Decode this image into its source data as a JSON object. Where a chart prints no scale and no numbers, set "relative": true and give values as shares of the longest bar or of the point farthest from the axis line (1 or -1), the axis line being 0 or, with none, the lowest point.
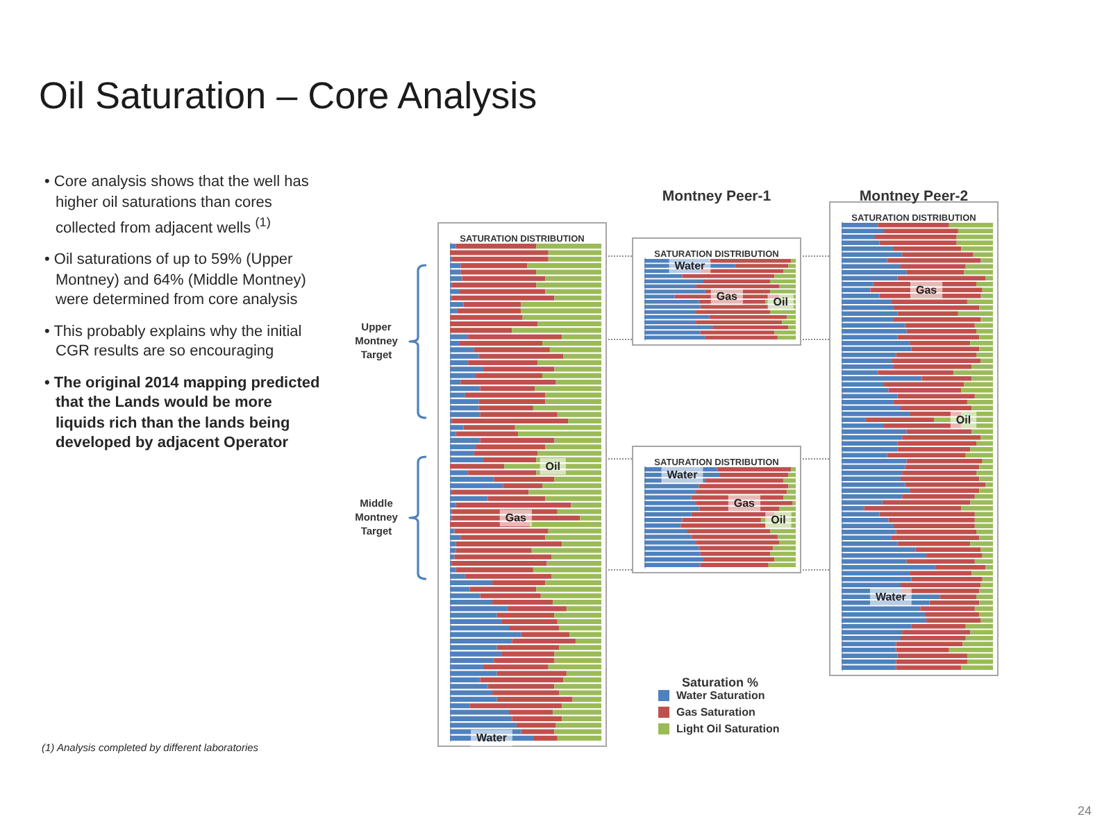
{
  "chart_data": [
    {
      "type": "other",
      "title": "Oil Saturation – Core Analysis",
      "annotations": [
        "• Core analysis shows that the well has higher oil saturations than cores collected from adjacent wells $^{(1)}$",
        "• Oil saturations of up to 59% (Upper Montney) and 64% (Middle Montney) were determined from core analysis",
        "• This probably explains why the initial CGR results are so encouraging",
        "• The original 2014 mapping predicted that the Lands would be more liquids rich than the lands being developed by adjacent Operator",
        "(1) Analysis completed by different laboratories",
        "24"
      ]
    },
    {
      "type": "bar",
      "subtitle": "SATURATION DISTRIBUTION",
      "orientation": "horizontal",
      "stacked": true,
      "relative": true,
      "categories": [
        null,
        null,
        null,
        null,
        null,
        null,
        null,
        null,
        null,
        null,
        null,
        null,
        null,
        null,
        null,
        null,
        null,
        null,
        null,
        null,
        null,
        null,
        null,
        null,
        null,
        null,
        null,
        null,
        null,
        null,
        null,
        null,
        null,
        null,
        null,
        null,
        null,
        null,
        null,
        null,
        null,
        null,
        null,
        null,
        null,
        null,
        null,
        null,
        null,
        null,
        null,
        null,
        null,
        null,
        null,
        null,
        null,
        null,
        null,
        null,
        null,
        null,
        null,
        null,
        null,
        null,
        null,
        null,
        null,
        null,
        null,
        null,
        null,
        null,
        null,
        null,
        null
      ],
      "series": [
        {
          "color": "#4f81bd",
          "values": [
            0.04,
            0,
            0.01,
            0.07,
            0.07,
            0.08,
            0.01,
            0.06,
            0.01,
            0.09,
            0.05,
            0,
            0,
            0,
            0.12,
            0.06,
            0.16,
            0.19,
            0.12,
            0.22,
            0.17,
            0.07,
            0.2,
            0.1,
            0.19,
            0.19,
            0.2,
            0.01,
            0.09,
            0.04,
            0.2,
            0.17,
            0.16,
            0.22,
            0,
            0.12,
            0.29,
            0.35,
            0.01,
            0.25,
            0.04,
            0.01,
            0.01,
            0,
            0.03,
            0.07,
            0.04,
            0.04,
            0.03,
            0.01,
            0.04,
            0.1,
            0.28,
            0.13,
            0.2,
            0.28,
            0.38,
            0.31,
            0.34,
            0.39,
            0.47,
            0.41,
            0.31,
            0.34,
            0.29,
            0.22,
            0.31,
            0.2,
            0.25,
            0.28,
            0.31,
            0.13,
            0.39,
            0.41,
            0.44,
            0.47,
            0.55
          ]
        },
        {
          "color": "#c0504d",
          "values": [
            0.53,
            0.65,
            0.64,
            0.44,
            0.5,
            0.55,
            0.56,
            0.57,
            0.68,
            0.38,
            0.42,
            0.48,
            0.58,
            0.41,
            0.62,
            0.55,
            0.5,
            0.56,
            0.46,
            0.47,
            0.44,
            0.63,
            0.36,
            0.53,
            0.44,
            0.36,
            0.51,
            0.77,
            0.34,
            0.41,
            0.49,
            0.46,
            0.42,
            0.35,
            0.36,
            0.45,
            0.4,
            0.26,
            0.51,
            0.38,
            0.76,
            0.7,
            0.85,
            0.53,
            0.62,
            0.56,
            0.7,
            0.5,
            0.64,
            0.63,
            0.51,
            0.57,
            0.35,
            0.44,
            0.4,
            0.4,
            0.39,
            0.38,
            0.37,
            0.33,
            0.32,
            0.42,
            0.41,
            0.35,
            0.4,
            0.43,
            0.46,
            0.55,
            0.44,
            0.44,
            0.5,
            0.61,
            0.29,
            0.33,
            0.26,
            0.22,
            0.16
          ]
        },
        {
          "color": "#9bbb59",
          "values": [
            0.43,
            0.35,
            0.35,
            0.49,
            0.43,
            0.37,
            0.43,
            0.37,
            0.31,
            0.53,
            0.53,
            0.52,
            0.42,
            0.59,
            0.26,
            0.39,
            0.34,
            0.25,
            0.42,
            0.31,
            0.39,
            0.3,
            0.44,
            0.37,
            0.37,
            0.45,
            0.29,
            0.22,
            0.57,
            0.55,
            0.31,
            0.37,
            0.42,
            0.43,
            0.64,
            0.43,
            0.31,
            0.39,
            0.48,
            0.37,
            0.2,
            0.29,
            0.14,
            0.47,
            0.35,
            0.37,
            0.26,
            0.46,
            0.33,
            0.36,
            0.45,
            0.33,
            0.37,
            0.43,
            0.4,
            0.32,
            0.23,
            0.31,
            0.29,
            0.28,
            0.21,
            0.17,
            0.28,
            0.31,
            0.31,
            0.35,
            0.23,
            0.25,
            0.31,
            0.28,
            0.19,
            0.26,
            0.32,
            0.26,
            0.3,
            0.31,
            0.29
          ]
        }
      ],
      "annotations": [
        "Water",
        "Gas",
        "Oil",
        "Upper Montney Target",
        "Middle Montney Target"
      ]
    },
    {
      "type": "bar",
      "title": "Montney Peer-1",
      "subtitle": "SATURATION DISTRIBUTION",
      "orientation": "horizontal",
      "stacked": true,
      "relative": true,
      "categories": [
        null,
        null,
        null,
        null,
        null,
        null,
        null,
        null,
        null,
        null,
        null,
        null,
        null,
        null,
        null,
        null
      ],
      "series": [
        {
          "color": "#4f81bd",
          "values": [
            0.43,
            0.6,
            0.37,
            0.25,
            0.39,
            0.34,
            0.4,
            0.2,
            0.36,
            0.37,
            0.34,
            0.43,
            0.34,
            0.45,
            0.37,
            0.4
          ]
        },
        {
          "color": "#c0504d",
          "values": [
            0.54,
            0.35,
            0.55,
            0.61,
            0.44,
            0.55,
            0.43,
            0.69,
            0.44,
            0.45,
            0.49,
            0.51,
            0.57,
            0.5,
            0.49,
            0.48
          ]
        },
        {
          "color": "#9bbb59",
          "values": [
            0.03,
            0.05,
            0.08,
            0.14,
            0.17,
            0.11,
            0.17,
            0.11,
            0.2,
            0.18,
            0.17,
            0.06,
            0.09,
            0.05,
            0.14,
            0.12
          ]
        }
      ],
      "annotations": [
        "Water",
        "Gas",
        "Oil"
      ]
    },
    {
      "type": "bar",
      "subtitle": "SATURATION DISTRIBUTION",
      "orientation": "horizontal",
      "stacked": true,
      "relative": true,
      "categories": [
        null,
        null,
        null,
        null,
        null,
        null,
        null,
        null,
        null,
        null,
        null,
        null,
        null,
        null,
        null,
        null,
        null,
        null
      ],
      "series": [
        {
          "name": "Water Saturation",
          "color": "#4f81bd",
          "values": [
            0.48,
            0.5,
            0.4,
            0.36,
            0.34,
            0.31,
            0.34,
            0.36,
            0.31,
            0.25,
            0.24,
            0.28,
            0.31,
            0.34,
            0.36,
            0.37,
            0.39,
            0.37
          ]
        },
        {
          "name": "Gas Saturation",
          "color": "#c0504d",
          "values": [
            0.49,
            0.45,
            0.52,
            0.59,
            0.6,
            0.61,
            0.64,
            0.53,
            0.55,
            0.52,
            0.56,
            0.55,
            0.57,
            0.55,
            0.49,
            0.46,
            0.47,
            0.45
          ]
        },
        {
          "name": "Light Oil Saturation",
          "color": "#9bbb59",
          "values": [
            0.03,
            0.05,
            0.08,
            0.05,
            0.06,
            0.08,
            0.02,
            0.11,
            0.14,
            0.23,
            0.2,
            0.17,
            0.12,
            0.11,
            0.15,
            0.17,
            0.14,
            0.18
          ]
        }
      ],
      "annotations": [
        "Water",
        "Gas",
        "Oil"
      ],
      "legend": "bottom",
      "legend_title": "Saturation %"
    },
    {
      "type": "bar",
      "title": "Montney Peer-2",
      "subtitle": "SATURATION DISTRIBUTION",
      "orientation": "horizontal",
      "stacked": true,
      "relative": true,
      "categories": [
        null,
        null,
        null,
        null,
        null,
        null,
        null,
        null,
        null,
        null,
        null,
        null,
        null,
        null,
        null,
        null,
        null,
        null,
        null,
        null,
        null,
        null,
        null,
        null,
        null,
        null,
        null,
        null,
        null,
        null,
        null,
        null,
        null,
        null,
        null,
        null,
        null,
        null,
        null,
        null,
        null,
        null,
        null,
        null,
        null,
        null,
        null,
        null,
        null,
        null,
        null,
        null,
        null,
        null,
        null,
        null,
        null,
        null,
        null,
        null,
        null,
        null,
        null,
        null,
        null,
        null,
        null,
        null,
        null,
        null,
        null,
        null,
        null,
        null,
        null,
        null
      ],
      "series": [
        {
          "color": "#4f81bd",
          "values": [
            0.24,
            0.28,
            0.22,
            0.25,
            0.34,
            0.4,
            0.3,
            0.39,
            0.43,
            0.37,
            0.21,
            0.19,
            0.25,
            0.33,
            0.34,
            0.37,
            0.34,
            0.42,
            0.43,
            0.37,
            0.45,
            0.46,
            0.36,
            0.33,
            0.34,
            0.24,
            0.53,
            0.28,
            0.31,
            0.37,
            0.34,
            0.39,
            0.45,
            0.16,
            0.28,
            0.43,
            0.4,
            0.37,
            0.37,
            0.3,
            0.43,
            0.42,
            0.4,
            0.39,
            0.42,
            0.45,
            0.4,
            0.27,
            0.15,
            0.25,
            0.31,
            0.34,
            0.36,
            0.33,
            0.37,
            0.49,
            0.56,
            0.43,
            0.62,
            0.45,
            0.46,
            0.39,
            0.4,
            0.65,
            0.58,
            0.52,
            0.55,
            0.56,
            0.46,
            0.4,
            0.39,
            0.36,
            0.36,
            0.37,
            0.36,
            0.36
          ]
        },
        {
          "color": "#c0504d",
          "values": [
            0.47,
            0.49,
            0.54,
            0.51,
            0.45,
            0.47,
            0.62,
            0.43,
            0.38,
            0.58,
            0.68,
            0.74,
            0.67,
            0.5,
            0.57,
            0.4,
            0.58,
            0.46,
            0.46,
            0.54,
            0.4,
            0.45,
            0.53,
            0.59,
            0.52,
            0.5,
            0.33,
            0.53,
            0.48,
            0.51,
            0.49,
            0.47,
            0.34,
            0.45,
            0.51,
            0.43,
            0.52,
            0.52,
            0.48,
            0.52,
            0.5,
            0.49,
            0.49,
            0.52,
            0.53,
            0.46,
            0.48,
            0.58,
            0.64,
            0.63,
            0.57,
            0.54,
            0.53,
            0.58,
            0.48,
            0.43,
            0.37,
            0.45,
            0.33,
            0.41,
            0.47,
            0.53,
            0.51,
            0.24,
            0.33,
            0.36,
            0.36,
            0.36,
            0.36,
            0.45,
            0.43,
            0.44,
            0.35,
            0.46,
            0.47,
            0.43
          ]
        },
        {
          "color": "#9bbb59",
          "values": [
            0.29,
            0.23,
            0.24,
            0.24,
            0.21,
            0.13,
            0.08,
            0.18,
            0.19,
            0.05,
            0.11,
            0.07,
            0.08,
            0.17,
            0.09,
            0.23,
            0.08,
            0.12,
            0.11,
            0.09,
            0.15,
            0.09,
            0.11,
            0.08,
            0.14,
            0.26,
            0.14,
            0.19,
            0.21,
            0.12,
            0.17,
            0.14,
            0.21,
            0.39,
            0.21,
            0.14,
            0.08,
            0.11,
            0.15,
            0.18,
            0.07,
            0.09,
            0.11,
            0.09,
            0.05,
            0.09,
            0.12,
            0.15,
            0.21,
            0.12,
            0.12,
            0.12,
            0.11,
            0.09,
            0.15,
            0.08,
            0.07,
            0.12,
            0.05,
            0.14,
            0.07,
            0.08,
            0.09,
            0.11,
            0.09,
            0.12,
            0.09,
            0.08,
            0.18,
            0.15,
            0.18,
            0.2,
            0.29,
            0.17,
            0.17,
            0.21
          ]
        }
      ],
      "annotations": [
        "Water",
        "Gas",
        "Oil"
      ]
    }
  ]
}
